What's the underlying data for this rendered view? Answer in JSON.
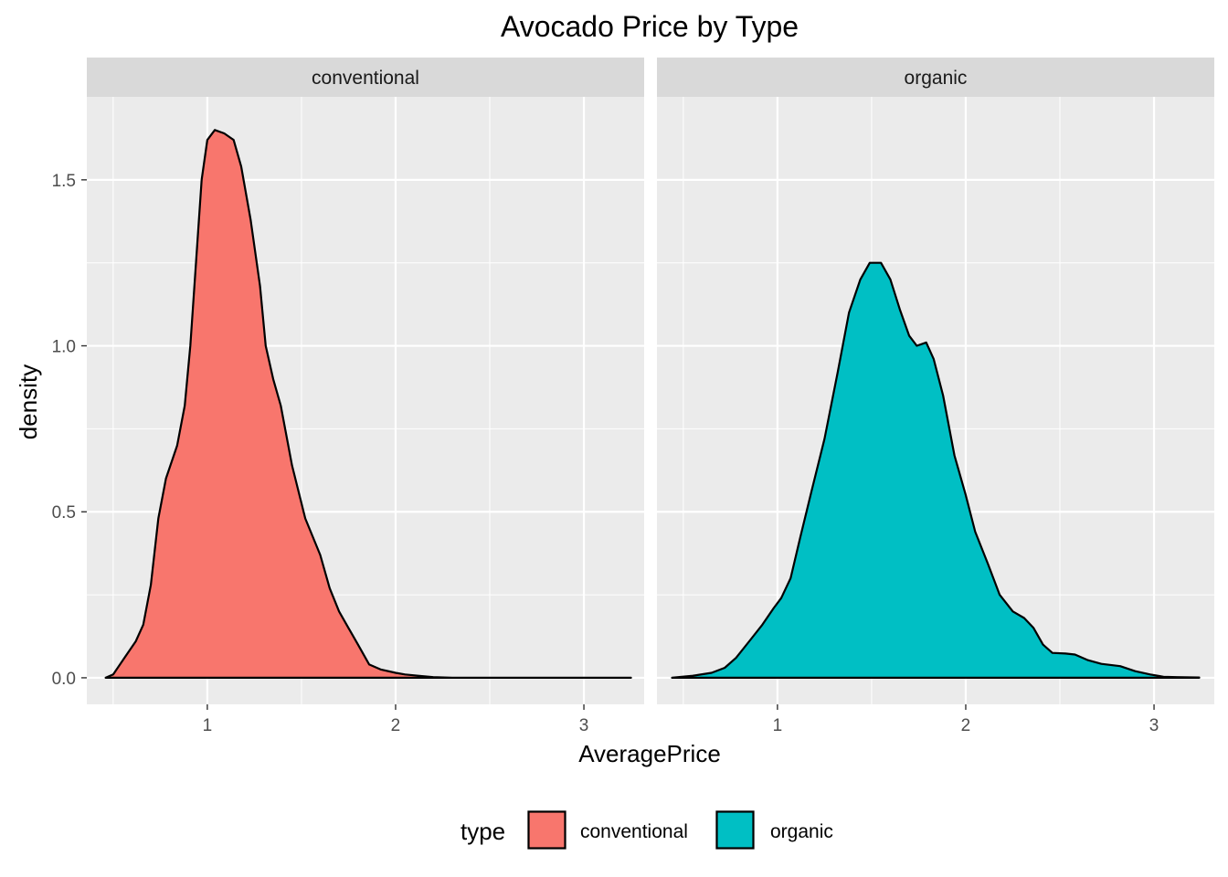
{
  "chart_data": {
    "type": "area",
    "subtype": "faceted density",
    "title": "Avocado Price by Type",
    "xlabel": "AveragePrice",
    "ylabel": "density",
    "xlim": [
      0.36,
      3.32
    ],
    "ylim": [
      -0.08,
      1.75
    ],
    "x_ticks": [
      1,
      2,
      3
    ],
    "y_ticks": [
      0.0,
      0.5,
      1.0,
      1.5
    ],
    "y_tick_labels": [
      "0.0",
      "0.5",
      "1.0",
      "1.5"
    ],
    "grid": true,
    "legend": {
      "title": "type",
      "position": "bottom"
    },
    "panels": [
      {
        "name": "conventional",
        "color": "#F8766D",
        "points": [
          [
            0.46,
            0.0
          ],
          [
            0.5,
            0.01
          ],
          [
            0.56,
            0.06
          ],
          [
            0.62,
            0.11
          ],
          [
            0.66,
            0.16
          ],
          [
            0.7,
            0.28
          ],
          [
            0.74,
            0.48
          ],
          [
            0.78,
            0.6
          ],
          [
            0.84,
            0.7
          ],
          [
            0.88,
            0.82
          ],
          [
            0.91,
            1.0
          ],
          [
            0.94,
            1.25
          ],
          [
            0.97,
            1.5
          ],
          [
            1.0,
            1.62
          ],
          [
            1.04,
            1.65
          ],
          [
            1.09,
            1.64
          ],
          [
            1.14,
            1.62
          ],
          [
            1.18,
            1.54
          ],
          [
            1.23,
            1.38
          ],
          [
            1.28,
            1.18
          ],
          [
            1.31,
            1.0
          ],
          [
            1.35,
            0.9
          ],
          [
            1.39,
            0.82
          ],
          [
            1.45,
            0.64
          ],
          [
            1.52,
            0.48
          ],
          [
            1.6,
            0.37
          ],
          [
            1.65,
            0.27
          ],
          [
            1.7,
            0.2
          ],
          [
            1.76,
            0.14
          ],
          [
            1.8,
            0.1
          ],
          [
            1.86,
            0.04
          ],
          [
            1.92,
            0.025
          ],
          [
            2.0,
            0.015
          ],
          [
            2.05,
            0.01
          ],
          [
            2.12,
            0.006
          ],
          [
            2.2,
            0.002
          ],
          [
            2.3,
            0.0
          ],
          [
            2.6,
            0.0
          ],
          [
            3.0,
            0.0
          ],
          [
            3.25,
            0.0
          ]
        ]
      },
      {
        "name": "organic",
        "color": "#00BFC4",
        "points": [
          [
            0.44,
            0.0
          ],
          [
            0.55,
            0.006
          ],
          [
            0.65,
            0.015
          ],
          [
            0.72,
            0.03
          ],
          [
            0.78,
            0.06
          ],
          [
            0.85,
            0.11
          ],
          [
            0.92,
            0.16
          ],
          [
            0.98,
            0.21
          ],
          [
            1.02,
            0.24
          ],
          [
            1.07,
            0.3
          ],
          [
            1.12,
            0.42
          ],
          [
            1.18,
            0.56
          ],
          [
            1.25,
            0.72
          ],
          [
            1.32,
            0.92
          ],
          [
            1.38,
            1.1
          ],
          [
            1.44,
            1.2
          ],
          [
            1.49,
            1.25
          ],
          [
            1.55,
            1.25
          ],
          [
            1.6,
            1.2
          ],
          [
            1.65,
            1.11
          ],
          [
            1.7,
            1.03
          ],
          [
            1.74,
            1.0
          ],
          [
            1.79,
            1.01
          ],
          [
            1.83,
            0.96
          ],
          [
            1.88,
            0.85
          ],
          [
            1.94,
            0.67
          ],
          [
            2.0,
            0.55
          ],
          [
            2.05,
            0.44
          ],
          [
            2.12,
            0.34
          ],
          [
            2.18,
            0.25
          ],
          [
            2.25,
            0.2
          ],
          [
            2.31,
            0.18
          ],
          [
            2.36,
            0.15
          ],
          [
            2.41,
            0.1
          ],
          [
            2.46,
            0.075
          ],
          [
            2.53,
            0.073
          ],
          [
            2.58,
            0.07
          ],
          [
            2.65,
            0.053
          ],
          [
            2.72,
            0.042
          ],
          [
            2.82,
            0.035
          ],
          [
            2.9,
            0.02
          ],
          [
            2.98,
            0.01
          ],
          [
            3.05,
            0.003
          ],
          [
            3.12,
            0.002
          ],
          [
            3.24,
            0.001
          ]
        ]
      }
    ]
  }
}
